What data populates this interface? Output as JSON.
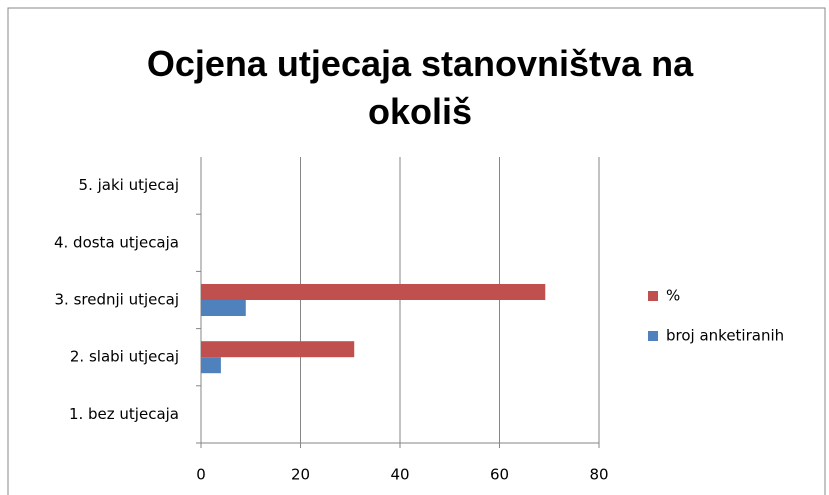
{
  "chart_data": {
    "type": "bar",
    "orientation": "horizontal",
    "title": "Ocjena utjecaja stanovništva na okoliš",
    "categories": [
      "1. bez utjecaja",
      "2. slabi utjecaj",
      "3. srednji utjecaj",
      "4. dosta utjecaja",
      "5. jaki utjecaj"
    ],
    "series": [
      {
        "name": "broj anketiranih",
        "color": "#4f81bd",
        "values": [
          0,
          4,
          9,
          0,
          0
        ]
      },
      {
        "name": "%",
        "color": "#c0504d",
        "values": [
          0,
          30.8,
          69.2,
          0,
          0
        ]
      }
    ],
    "xlim": [
      0,
      80
    ],
    "xticks": [
      0,
      20,
      40,
      60,
      80
    ],
    "grid": true,
    "legend": "right"
  }
}
